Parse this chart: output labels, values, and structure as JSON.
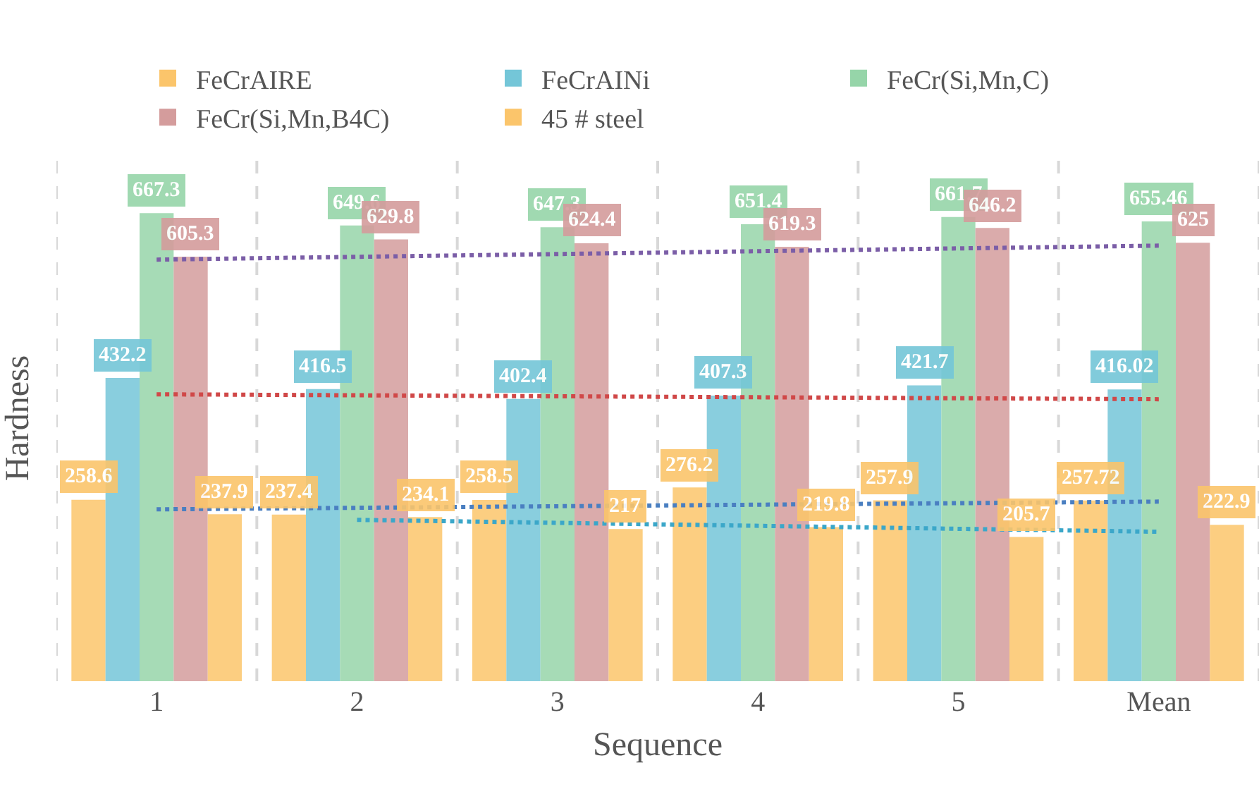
{
  "chart_data": {
    "type": "bar",
    "xlabel": "Sequence",
    "ylabel": "Hardness",
    "categories": [
      "1",
      "2",
      "3",
      "4",
      "5",
      "Mean"
    ],
    "series": [
      {
        "name": "FeCrAIRE",
        "color": "#fbc56b",
        "values": [
          258.6,
          237.4,
          258.5,
          276.2,
          257.9,
          257.72
        ],
        "value_labels": [
          "258.6",
          "237.4",
          "258.5",
          "276.2",
          "257.9",
          "257.72"
        ]
      },
      {
        "name": "FeCrAINi",
        "color": "#74c6d8",
        "values": [
          432.2,
          416.5,
          402.4,
          407.3,
          421.7,
          416.02
        ],
        "value_labels": [
          "432.2",
          "416.5",
          "402.4",
          "407.3",
          "421.7",
          "416.02"
        ]
      },
      {
        "name": "FeCr(Si,Mn,C)",
        "color": "#96d5a9",
        "values": [
          667.3,
          649.6,
          647.3,
          651.4,
          661.7,
          655.46
        ],
        "value_labels": [
          "667.3",
          "649.6",
          "647.3",
          "651.4",
          "661.7",
          "655.46"
        ]
      },
      {
        "name": "FeCr(Si,Mn,B4C)",
        "color": "#d49c9c",
        "values": [
          605.3,
          629.8,
          624.4,
          619.3,
          646.2,
          625
        ],
        "value_labels": [
          "605.3",
          "629.8",
          "624.4",
          "619.3",
          "646.2",
          "625"
        ]
      },
      {
        "name": "45 # steel",
        "color": "#fbc56b",
        "values": [
          237.9,
          234.1,
          217,
          219.8,
          205.7,
          222.9
        ],
        "value_labels": [
          "237.9",
          "234.1",
          "217",
          "219.8",
          "205.7",
          "222.9"
        ]
      },
      {
        "type": "line",
        "color": "#7b5ea7",
        "x": [
          "1",
          "Mean"
        ],
        "values": [
          601,
          621
        ],
        "line_style": "dotted",
        "marker": "none"
      },
      {
        "type": "line",
        "color": "#d04848",
        "x": [
          "1",
          "Mean"
        ],
        "values": [
          409,
          402
        ],
        "line_style": "dotted",
        "marker": "none"
      },
      {
        "type": "line",
        "color": "#4a7fc1",
        "x": [
          "1",
          "Mean"
        ],
        "values": [
          245,
          256
        ],
        "line_style": "dotted",
        "marker": "none"
      },
      {
        "type": "line",
        "color": "#3ba7c9",
        "x": [
          "2",
          "Mean"
        ],
        "values": [
          230,
          213
        ],
        "line_style": "dotted",
        "marker": "none"
      }
    ],
    "ylim": [
      0,
      750
    ],
    "tick_labels": "x",
    "grid": "x",
    "legend": "top"
  }
}
